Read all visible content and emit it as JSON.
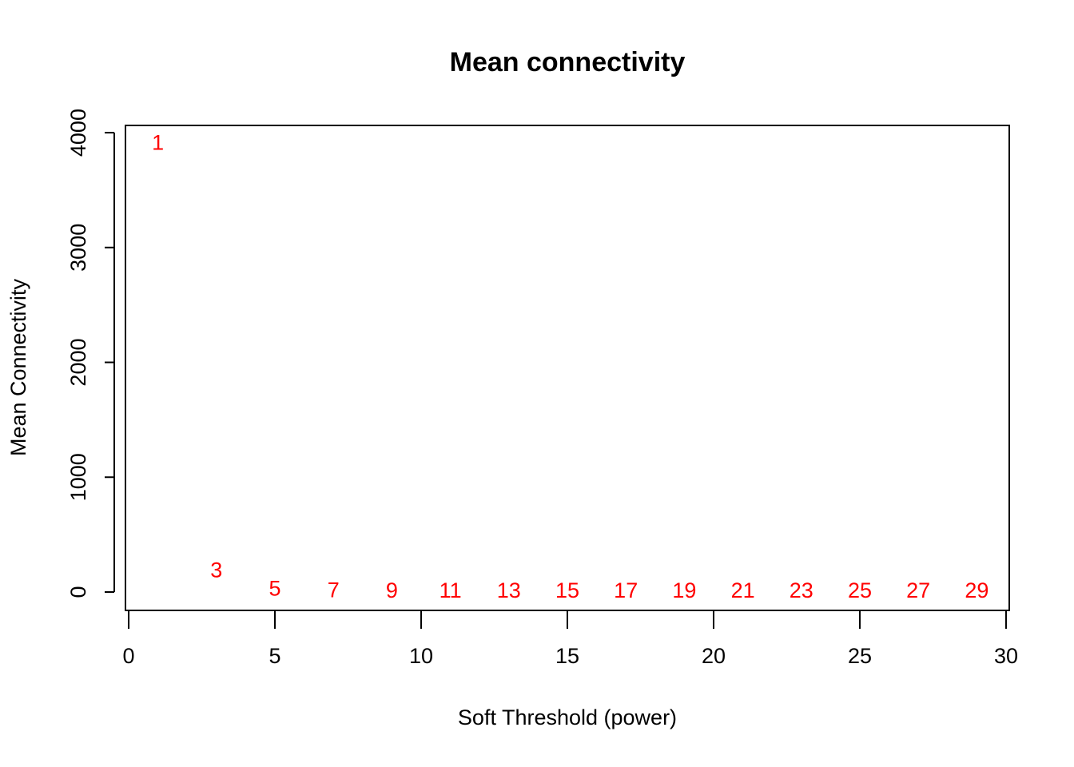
{
  "chart_data": {
    "type": "text-scatter",
    "title": "Mean connectivity",
    "x_label": "Soft Threshold (power)",
    "y_label": "Mean Connectivity",
    "x": [
      1,
      3,
      5,
      7,
      9,
      11,
      13,
      15,
      17,
      19,
      21,
      23,
      25,
      27,
      29
    ],
    "values": [
      3900,
      180,
      20,
      5,
      2,
      1,
      0.5,
      0.3,
      0.2,
      0.1,
      0.1,
      0.1,
      0,
      0,
      0
    ],
    "color": "#ff0000",
    "xlim": [
      -0.11,
      30.11
    ],
    "ylim": [
      -160,
      4063
    ],
    "xticks": [
      0,
      5,
      10,
      15,
      20,
      25,
      30
    ],
    "yticks": [
      0,
      1000,
      2000,
      3000,
      4000
    ]
  }
}
